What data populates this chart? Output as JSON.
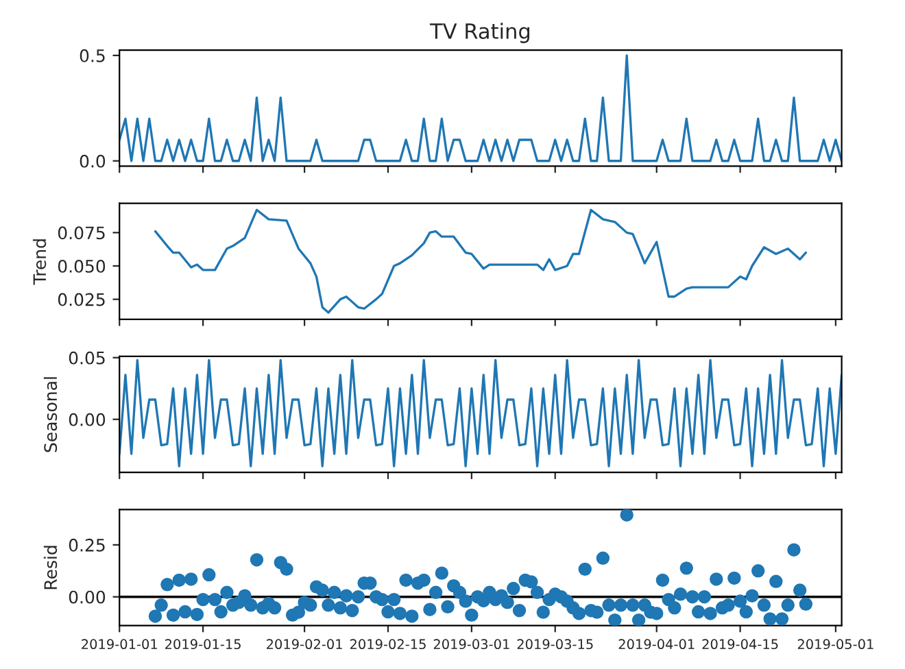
{
  "chart_data": [
    {
      "type": "line",
      "title": "TV Rating",
      "color": "#1f77b4",
      "tick_labels": "y",
      "xlim": [
        "2019-01-01",
        "2019-05-02"
      ],
      "ylim": [
        -0.025,
        0.525
      ],
      "yticks": [
        {
          "value": 0.0,
          "label": "0.0"
        },
        {
          "value": 0.5,
          "label": "0.5"
        }
      ],
      "xticks": [
        {
          "value": "2019-01-01",
          "label": null
        },
        {
          "value": "2019-01-15",
          "label": null
        },
        {
          "value": "2019-02-01",
          "label": null
        },
        {
          "value": "2019-02-15",
          "label": null
        },
        {
          "value": "2019-03-01",
          "label": null
        },
        {
          "value": "2019-03-15",
          "label": null
        },
        {
          "value": "2019-04-01",
          "label": null
        },
        {
          "value": "2019-04-15",
          "label": null
        },
        {
          "value": "2019-05-01",
          "label": null
        }
      ],
      "x": [
        "2019-01-01",
        "2019-01-02",
        "2019-01-03",
        "2019-01-04",
        "2019-01-05",
        "2019-01-06",
        "2019-01-07",
        "2019-01-08",
        "2019-01-09",
        "2019-01-10",
        "2019-01-11",
        "2019-01-12",
        "2019-01-13",
        "2019-01-14",
        "2019-01-15",
        "2019-01-16",
        "2019-01-17",
        "2019-01-18",
        "2019-01-19",
        "2019-01-20",
        "2019-01-21",
        "2019-01-22",
        "2019-01-23",
        "2019-01-24",
        "2019-01-25",
        "2019-01-26",
        "2019-01-27",
        "2019-01-28",
        "2019-01-29",
        "2019-01-30",
        "2019-01-31",
        "2019-02-01",
        "2019-02-02",
        "2019-02-03",
        "2019-02-04",
        "2019-02-05",
        "2019-02-06",
        "2019-02-07",
        "2019-02-08",
        "2019-02-09",
        "2019-02-10",
        "2019-02-11",
        "2019-02-12",
        "2019-02-13",
        "2019-02-14",
        "2019-02-15",
        "2019-02-16",
        "2019-02-17",
        "2019-02-18",
        "2019-02-19",
        "2019-02-20",
        "2019-02-21",
        "2019-02-22",
        "2019-02-23",
        "2019-02-24",
        "2019-02-25",
        "2019-02-26",
        "2019-02-27",
        "2019-02-28",
        "2019-03-01",
        "2019-03-02",
        "2019-03-03",
        "2019-03-04",
        "2019-03-05",
        "2019-03-06",
        "2019-03-07",
        "2019-03-08",
        "2019-03-09",
        "2019-03-10",
        "2019-03-11",
        "2019-03-12",
        "2019-03-13",
        "2019-03-14",
        "2019-03-15",
        "2019-03-16",
        "2019-03-17",
        "2019-03-18",
        "2019-03-19",
        "2019-03-20",
        "2019-03-21",
        "2019-03-22",
        "2019-03-23",
        "2019-03-24",
        "2019-03-25",
        "2019-03-26",
        "2019-03-27",
        "2019-03-28",
        "2019-03-29",
        "2019-03-30",
        "2019-03-31",
        "2019-04-01",
        "2019-04-02",
        "2019-04-03",
        "2019-04-04",
        "2019-04-05",
        "2019-04-06",
        "2019-04-07",
        "2019-04-08",
        "2019-04-09",
        "2019-04-10",
        "2019-04-11",
        "2019-04-12",
        "2019-04-13",
        "2019-04-14",
        "2019-04-15",
        "2019-04-16",
        "2019-04-17",
        "2019-04-18",
        "2019-04-19",
        "2019-04-20",
        "2019-04-21",
        "2019-04-22",
        "2019-04-23",
        "2019-04-24",
        "2019-04-25",
        "2019-04-26",
        "2019-04-27",
        "2019-04-28",
        "2019-04-29",
        "2019-04-30",
        "2019-05-01",
        "2019-05-02"
      ],
      "values": [
        0.1,
        0.2,
        0,
        0.2,
        0,
        0.2,
        0,
        0,
        0.1,
        0,
        0.1,
        0,
        0.1,
        0,
        0,
        0.2,
        0,
        0,
        0.1,
        0,
        0,
        0.1,
        0,
        0.3,
        0,
        0.1,
        0,
        0.3,
        0,
        0,
        0,
        0,
        0,
        0.1,
        0,
        0,
        0,
        0,
        0,
        0,
        0,
        0.1,
        0.1,
        0,
        0,
        0,
        0,
        0,
        0.1,
        0,
        0,
        0.2,
        0,
        0,
        0.2,
        0,
        0.1,
        0.1,
        0,
        0,
        0,
        0.1,
        0,
        0.1,
        0,
        0.1,
        0,
        0.1,
        0.1,
        0.1,
        0,
        0,
        0,
        0.1,
        0,
        0.1,
        0,
        0,
        0.2,
        0,
        0,
        0.3,
        0,
        0,
        0,
        0.5,
        0,
        0,
        0,
        0,
        0,
        0.1,
        0,
        0,
        0,
        0.2,
        0,
        0,
        0,
        0,
        0.1,
        0,
        0,
        0.1,
        0,
        0,
        0,
        0.2,
        0,
        0,
        0.1,
        0,
        0,
        0.3,
        0,
        0,
        0,
        0,
        0.1,
        0,
        0.1,
        0
      ]
    },
    {
      "type": "line",
      "ylabel": "Trend",
      "color": "#1f77b4",
      "tick_labels": "y",
      "xlim": [
        "2019-01-01",
        "2019-05-02"
      ],
      "ylim": [
        0.01,
        0.097
      ],
      "yticks": [
        {
          "value": 0.025,
          "label": "0.025"
        },
        {
          "value": 0.05,
          "label": "0.050"
        },
        {
          "value": 0.075,
          "label": "0.075"
        }
      ],
      "xticks": [
        {
          "value": "2019-01-01",
          "label": null
        },
        {
          "value": "2019-01-15",
          "label": null
        },
        {
          "value": "2019-02-01",
          "label": null
        },
        {
          "value": "2019-02-15",
          "label": null
        },
        {
          "value": "2019-03-01",
          "label": null
        },
        {
          "value": "2019-03-15",
          "label": null
        },
        {
          "value": "2019-04-01",
          "label": null
        },
        {
          "value": "2019-04-15",
          "label": null
        },
        {
          "value": "2019-05-01",
          "label": null
        }
      ],
      "x": [
        "2019-01-07",
        "2019-01-09",
        "2019-01-10",
        "2019-01-11",
        "2019-01-13",
        "2019-01-14",
        "2019-01-15",
        "2019-01-17",
        "2019-01-19",
        "2019-01-20",
        "2019-01-22",
        "2019-01-24",
        "2019-01-26",
        "2019-01-29",
        "2019-01-31",
        "2019-02-02",
        "2019-02-03",
        "2019-02-04",
        "2019-02-05",
        "2019-02-07",
        "2019-02-08",
        "2019-02-10",
        "2019-02-11",
        "2019-02-13",
        "2019-02-14",
        "2019-02-16",
        "2019-02-17",
        "2019-02-19",
        "2019-02-21",
        "2019-02-22",
        "2019-02-23",
        "2019-02-24",
        "2019-02-26",
        "2019-02-28",
        "2019-03-01",
        "2019-03-03",
        "2019-03-04",
        "2019-03-12",
        "2019-03-13",
        "2019-03-14",
        "2019-03-15",
        "2019-03-17",
        "2019-03-18",
        "2019-03-19",
        "2019-03-21",
        "2019-03-23",
        "2019-03-25",
        "2019-03-27",
        "2019-03-28",
        "2019-03-29",
        "2019-03-30",
        "2019-04-01",
        "2019-04-03",
        "2019-04-04",
        "2019-04-06",
        "2019-04-07",
        "2019-04-13",
        "2019-04-15",
        "2019-04-16",
        "2019-04-17",
        "2019-04-19",
        "2019-04-21",
        "2019-04-23",
        "2019-04-25",
        "2019-04-26"
      ],
      "values": [
        0.076,
        0.065,
        0.06,
        0.06,
        0.049,
        0.051,
        0.047,
        0.047,
        0.063,
        0.065,
        0.071,
        0.092,
        0.085,
        0.084,
        0.063,
        0.052,
        0.042,
        0.019,
        0.015,
        0.025,
        0.027,
        0.019,
        0.018,
        0.025,
        0.029,
        0.05,
        0.052,
        0.058,
        0.067,
        0.075,
        0.076,
        0.072,
        0.072,
        0.06,
        0.059,
        0.048,
        0.051,
        0.051,
        0.047,
        0.055,
        0.047,
        0.05,
        0.059,
        0.059,
        0.092,
        0.085,
        0.083,
        0.075,
        0.074,
        0.063,
        0.052,
        0.068,
        0.027,
        0.027,
        0.033,
        0.034,
        0.034,
        0.042,
        0.04,
        0.05,
        0.064,
        0.059,
        0.063,
        0.055,
        0.06
      ]
    },
    {
      "type": "line",
      "ylabel": "Seasonal",
      "color": "#1f77b4",
      "tick_labels": "y",
      "xlim": [
        "2019-01-01",
        "2019-05-02"
      ],
      "ylim": [
        -0.043,
        0.051
      ],
      "yticks": [
        {
          "value": 0.0,
          "label": "0.00"
        },
        {
          "value": 0.05,
          "label": "0.05"
        }
      ],
      "xticks": [
        {
          "value": "2019-01-01",
          "label": null
        },
        {
          "value": "2019-01-15",
          "label": null
        },
        {
          "value": "2019-02-01",
          "label": null
        },
        {
          "value": "2019-02-15",
          "label": null
        },
        {
          "value": "2019-03-01",
          "label": null
        },
        {
          "value": "2019-03-15",
          "label": null
        },
        {
          "value": "2019-04-01",
          "label": null
        },
        {
          "value": "2019-04-15",
          "label": null
        },
        {
          "value": "2019-05-01",
          "label": null
        }
      ],
      "x": [
        "2019-01-01",
        "2019-01-02",
        "2019-01-03",
        "2019-01-04",
        "2019-01-05",
        "2019-01-06",
        "2019-01-07",
        "2019-01-08",
        "2019-01-09",
        "2019-01-10",
        "2019-01-11",
        "2019-01-12",
        "2019-01-13",
        "2019-01-14",
        "2019-01-15",
        "2019-01-16",
        "2019-01-17",
        "2019-01-18",
        "2019-01-19",
        "2019-01-20",
        "2019-01-21",
        "2019-01-22",
        "2019-01-23",
        "2019-01-24",
        "2019-01-25",
        "2019-01-26",
        "2019-01-27",
        "2019-01-28",
        "2019-01-29",
        "2019-01-30",
        "2019-01-31",
        "2019-02-01",
        "2019-02-02",
        "2019-02-03",
        "2019-02-04",
        "2019-02-05",
        "2019-02-06",
        "2019-02-07",
        "2019-02-08",
        "2019-02-09",
        "2019-02-10",
        "2019-02-11",
        "2019-02-12",
        "2019-02-13",
        "2019-02-14",
        "2019-02-15",
        "2019-02-16",
        "2019-02-17",
        "2019-02-18",
        "2019-02-19",
        "2019-02-20",
        "2019-02-21",
        "2019-02-22",
        "2019-02-23",
        "2019-02-24",
        "2019-02-25",
        "2019-02-26",
        "2019-02-27",
        "2019-02-28",
        "2019-03-01",
        "2019-03-02",
        "2019-03-03",
        "2019-03-04",
        "2019-03-05",
        "2019-03-06",
        "2019-03-07",
        "2019-03-08",
        "2019-03-09",
        "2019-03-10",
        "2019-03-11",
        "2019-03-12",
        "2019-03-13",
        "2019-03-14",
        "2019-03-15",
        "2019-03-16",
        "2019-03-17",
        "2019-03-18",
        "2019-03-19",
        "2019-03-20",
        "2019-03-21",
        "2019-03-22",
        "2019-03-23",
        "2019-03-24",
        "2019-03-25",
        "2019-03-26",
        "2019-03-27",
        "2019-03-28",
        "2019-03-29",
        "2019-03-30",
        "2019-03-31",
        "2019-04-01",
        "2019-04-02",
        "2019-04-03",
        "2019-04-04",
        "2019-04-05",
        "2019-04-06",
        "2019-04-07",
        "2019-04-08",
        "2019-04-09",
        "2019-04-10",
        "2019-04-11",
        "2019-04-12",
        "2019-04-13",
        "2019-04-14",
        "2019-04-15",
        "2019-04-16",
        "2019-04-17",
        "2019-04-18",
        "2019-04-19",
        "2019-04-20",
        "2019-04-21",
        "2019-04-22",
        "2019-04-23",
        "2019-04-24",
        "2019-04-25",
        "2019-04-26",
        "2019-04-27",
        "2019-04-28",
        "2019-04-29",
        "2019-04-30",
        "2019-05-01",
        "2019-05-02"
      ],
      "values": [
        -0.028,
        0.036,
        -0.028,
        0.048,
        -0.015,
        0.016,
        0.016,
        -0.021,
        -0.02,
        0.025,
        -0.038,
        0.025,
        -0.028,
        0.036,
        -0.028,
        0.048,
        -0.015,
        0.016,
        0.016,
        -0.021,
        -0.02,
        0.025,
        -0.038,
        0.025,
        -0.028,
        0.036,
        -0.028,
        0.048,
        -0.015,
        0.016,
        0.016,
        -0.021,
        -0.02,
        0.025,
        -0.038,
        0.025,
        -0.028,
        0.036,
        -0.028,
        0.048,
        -0.015,
        0.016,
        0.016,
        -0.021,
        -0.02,
        0.025,
        -0.038,
        0.025,
        -0.028,
        0.036,
        -0.028,
        0.048,
        -0.015,
        0.016,
        0.016,
        -0.021,
        -0.02,
        0.025,
        -0.038,
        0.025,
        -0.028,
        0.036,
        -0.028,
        0.048,
        -0.015,
        0.016,
        0.016,
        -0.021,
        -0.02,
        0.025,
        -0.038,
        0.025,
        -0.028,
        0.036,
        -0.028,
        0.048,
        -0.015,
        0.016,
        0.016,
        -0.021,
        -0.02,
        0.025,
        -0.038,
        0.025,
        -0.028,
        0.036,
        -0.028,
        0.048,
        -0.015,
        0.016,
        0.016,
        -0.021,
        -0.02,
        0.025,
        -0.038,
        0.025,
        -0.028,
        0.036,
        -0.028,
        0.048,
        -0.015,
        0.016,
        0.016,
        -0.021,
        -0.02,
        0.025,
        -0.038,
        0.025,
        -0.028,
        0.036,
        -0.028,
        0.048,
        -0.015,
        0.016,
        0.016,
        -0.021,
        -0.02,
        0.025,
        -0.038,
        0.025,
        -0.028,
        0.036
      ]
    },
    {
      "type": "scatter",
      "ylabel": "Resid",
      "color": "#1f77b4",
      "marker": "circle",
      "xlim": [
        "2019-01-01",
        "2019-05-02"
      ],
      "ylim": [
        -0.138,
        0.42
      ],
      "yticks": [
        {
          "value": 0.0,
          "label": "0.00"
        },
        {
          "value": 0.25,
          "label": "0.25"
        }
      ],
      "ref_lines": [
        {
          "axis": "y",
          "value": 0,
          "color": "#000000"
        }
      ],
      "xticks": [
        {
          "value": "2019-01-01",
          "label": "2019-01-01"
        },
        {
          "value": "2019-01-15",
          "label": "2019-01-15"
        },
        {
          "value": "2019-02-01",
          "label": "2019-02-01"
        },
        {
          "value": "2019-02-15",
          "label": "2019-02-15"
        },
        {
          "value": "2019-03-01",
          "label": "2019-03-01"
        },
        {
          "value": "2019-03-15",
          "label": "2019-03-15"
        },
        {
          "value": "2019-04-01",
          "label": "2019-04-01"
        },
        {
          "value": "2019-04-15",
          "label": "2019-04-15"
        },
        {
          "value": "2019-05-01",
          "label": "2019-05-01"
        }
      ],
      "x": [
        "2019-01-07",
        "2019-01-08",
        "2019-01-09",
        "2019-01-10",
        "2019-01-11",
        "2019-01-12",
        "2019-01-13",
        "2019-01-14",
        "2019-01-15",
        "2019-01-16",
        "2019-01-17",
        "2019-01-18",
        "2019-01-19",
        "2019-01-20",
        "2019-01-21",
        "2019-01-22",
        "2019-01-23",
        "2019-01-24",
        "2019-01-25",
        "2019-01-26",
        "2019-01-27",
        "2019-01-28",
        "2019-01-29",
        "2019-01-30",
        "2019-01-31",
        "2019-02-01",
        "2019-02-02",
        "2019-02-03",
        "2019-02-04",
        "2019-02-05",
        "2019-02-06",
        "2019-02-07",
        "2019-02-08",
        "2019-02-09",
        "2019-02-10",
        "2019-02-11",
        "2019-02-12",
        "2019-02-13",
        "2019-02-14",
        "2019-02-15",
        "2019-02-16",
        "2019-02-17",
        "2019-02-18",
        "2019-02-19",
        "2019-02-20",
        "2019-02-21",
        "2019-02-22",
        "2019-02-23",
        "2019-02-24",
        "2019-02-25",
        "2019-02-26",
        "2019-02-27",
        "2019-02-28",
        "2019-03-01",
        "2019-03-02",
        "2019-03-03",
        "2019-03-04",
        "2019-03-05",
        "2019-03-06",
        "2019-03-07",
        "2019-03-08",
        "2019-03-09",
        "2019-03-10",
        "2019-03-11",
        "2019-03-12",
        "2019-03-13",
        "2019-03-14",
        "2019-03-15",
        "2019-03-16",
        "2019-03-17",
        "2019-03-18",
        "2019-03-19",
        "2019-03-20",
        "2019-03-21",
        "2019-03-22",
        "2019-03-23",
        "2019-03-24",
        "2019-03-25",
        "2019-03-26",
        "2019-03-27",
        "2019-03-28",
        "2019-03-29",
        "2019-03-30",
        "2019-03-31",
        "2019-04-01",
        "2019-04-02",
        "2019-04-03",
        "2019-04-04",
        "2019-04-05",
        "2019-04-06",
        "2019-04-07",
        "2019-04-08",
        "2019-04-09",
        "2019-04-10",
        "2019-04-11",
        "2019-04-12",
        "2019-04-13",
        "2019-04-14",
        "2019-04-15",
        "2019-04-16",
        "2019-04-17",
        "2019-04-18",
        "2019-04-19",
        "2019-04-20",
        "2019-04-21",
        "2019-04-22",
        "2019-04-23",
        "2019-04-24",
        "2019-04-25",
        "2019-04-26"
      ],
      "values": [
        -0.093,
        -0.04,
        0.059,
        -0.088,
        0.08,
        -0.072,
        0.085,
        -0.085,
        -0.013,
        0.106,
        -0.013,
        -0.072,
        0.021,
        -0.04,
        -0.027,
        0.005,
        -0.04,
        0.178,
        -0.053,
        -0.032,
        -0.053,
        0.165,
        0.133,
        -0.088,
        -0.074,
        -0.027,
        -0.04,
        0.048,
        0.032,
        -0.04,
        0.021,
        -0.053,
        0.005,
        -0.066,
        0.0,
        0.066,
        0.066,
        0.0,
        -0.013,
        -0.072,
        -0.013,
        -0.08,
        0.08,
        -0.093,
        0.066,
        0.08,
        -0.061,
        0.021,
        0.114,
        -0.048,
        0.053,
        0.021,
        -0.021,
        -0.088,
        0.0,
        -0.019,
        0.021,
        -0.013,
        0.005,
        -0.027,
        0.04,
        -0.066,
        0.08,
        0.072,
        0.021,
        -0.074,
        -0.013,
        0.013,
        0.0,
        -0.021,
        -0.053,
        -0.08,
        0.133,
        -0.066,
        -0.074,
        0.186,
        -0.04,
        -0.112,
        -0.04,
        0.394,
        -0.04,
        -0.112,
        -0.04,
        -0.074,
        -0.08,
        0.08,
        -0.013,
        -0.053,
        0.013,
        0.138,
        0.0,
        -0.072,
        0.0,
        -0.08,
        0.085,
        -0.053,
        -0.04,
        0.09,
        -0.021,
        -0.072,
        0.005,
        0.125,
        -0.04,
        -0.106,
        0.074,
        -0.106,
        -0.04,
        0.226,
        0.032,
        -0.035
      ]
    }
  ]
}
